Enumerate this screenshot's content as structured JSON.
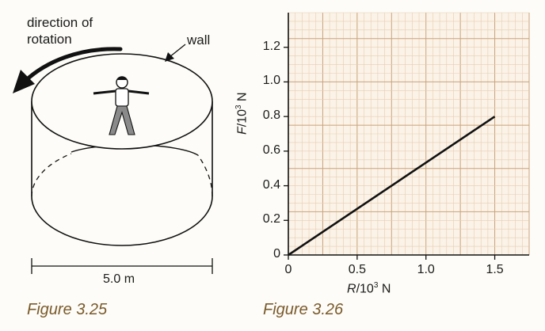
{
  "figure_left": {
    "caption": "Figure 3.25",
    "label_direction": "direction of\nrotation",
    "label_direction_line1": "direction of",
    "label_direction_line2": "rotation",
    "label_wall": "wall",
    "label_width": "5.0 m"
  },
  "figure_right": {
    "caption": "Figure 3.26"
  },
  "chart_data": {
    "type": "line",
    "xlabel_var": "R",
    "xlabel_unit": "/10",
    "xlabel_exp": "3",
    "xlabel_tail": " N",
    "ylabel_var": "F",
    "ylabel_unit": "/10",
    "ylabel_exp": "3",
    "ylabel_tail": " N",
    "xlim": [
      0,
      1.75
    ],
    "ylim": [
      0,
      1.4
    ],
    "x_ticks": [
      "0",
      "0.5",
      "1.0",
      "1.5"
    ],
    "x_tick_values": [
      0,
      0.5,
      1.0,
      1.5
    ],
    "y_ticks": [
      "0",
      "0.2",
      "0.4",
      "0.6",
      "0.8",
      "1.0",
      "1.2"
    ],
    "y_tick_values": [
      0,
      0.2,
      0.4,
      0.6,
      0.8,
      1.0,
      1.2
    ],
    "grid": true,
    "series": [
      {
        "x": [
          0,
          1.5
        ],
        "y": [
          0,
          0.8
        ]
      }
    ],
    "colors": {
      "grid_major": "#c9a27a",
      "grid_minor": "#e6cdb0",
      "paper": "#fbf3e8",
      "line": "#111111"
    }
  }
}
